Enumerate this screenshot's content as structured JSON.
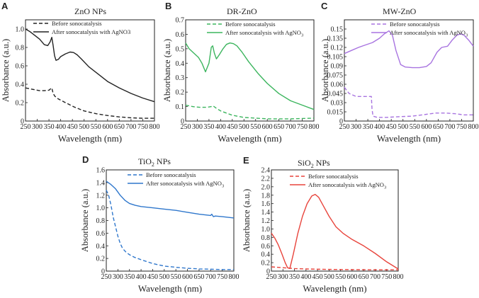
{
  "x_ticks": [
    "250",
    "300",
    "350",
    "400",
    "450",
    "500",
    "550",
    "600",
    "650",
    "700",
    "750",
    "800"
  ],
  "xlabel": "Wavelength (nm)",
  "ylabel": "Absorbance (a.u.)",
  "legend_before": "Before sonocatalysis",
  "legend_after_prefix": "After sonocatalysis with AgNO",
  "legend_after_sub": "3",
  "chart_data": [
    {
      "letter": "A",
      "type": "line",
      "title_parts": [
        {
          "t": "ZnO  NPs",
          "sub": false
        }
      ],
      "xlim": [
        250,
        800
      ],
      "ylim": [
        0,
        1.1
      ],
      "y_ticks": [
        {
          "v": 0,
          "label": "0"
        },
        {
          "v": 0.2,
          "label": "0.2"
        },
        {
          "v": 0.4,
          "label": "0.4"
        },
        {
          "v": 0.6,
          "label": "0.6"
        },
        {
          "v": 0.8,
          "label": "0.8"
        },
        {
          "v": 1.0,
          "label": "1.0"
        }
      ],
      "legend_style": "plain",
      "color": "#222222",
      "series": [
        {
          "name": "Before sonocatalysis",
          "dash": true,
          "x": [
            250,
            280,
            310,
            330,
            350,
            362,
            368,
            375,
            390,
            420,
            460,
            500,
            550,
            600,
            650,
            700,
            750,
            800
          ],
          "y": [
            0.36,
            0.345,
            0.33,
            0.33,
            0.335,
            0.36,
            0.3,
            0.27,
            0.24,
            0.2,
            0.15,
            0.11,
            0.08,
            0.06,
            0.045,
            0.035,
            0.03,
            0.03
          ]
        },
        {
          "name": "After sonocatalysis with AgNO3",
          "dash": false,
          "x": [
            250,
            270,
            290,
            310,
            330,
            345,
            355,
            362,
            368,
            374,
            380,
            390,
            400,
            420,
            440,
            455,
            470,
            490,
            520,
            560,
            600,
            650,
            700,
            750,
            800
          ],
          "y": [
            1.0,
            0.97,
            0.93,
            0.89,
            0.83,
            0.82,
            0.86,
            0.91,
            0.82,
            0.71,
            0.66,
            0.67,
            0.7,
            0.73,
            0.75,
            0.745,
            0.72,
            0.67,
            0.59,
            0.51,
            0.43,
            0.36,
            0.3,
            0.25,
            0.21
          ]
        }
      ]
    },
    {
      "letter": "B",
      "type": "line",
      "title_parts": [
        {
          "t": "DR-ZnO",
          "sub": false
        }
      ],
      "xlim": [
        250,
        800
      ],
      "ylim": [
        0,
        0.7
      ],
      "y_ticks": [
        {
          "v": 0,
          "label": "0"
        },
        {
          "v": 0.1,
          "label": "0.1"
        },
        {
          "v": 0.2,
          "label": "0.2"
        },
        {
          "v": 0.3,
          "label": "0.3"
        },
        {
          "v": 0.4,
          "label": "0.4"
        },
        {
          "v": 0.5,
          "label": "0.5"
        },
        {
          "v": 0.6,
          "label": "0.6"
        },
        {
          "v": 0.7,
          "label": "0.7"
        }
      ],
      "legend_style": "sub",
      "color": "#3cb55e",
      "series": [
        {
          "name": "Before sonocatalysis",
          "dash": true,
          "x": [
            250,
            280,
            310,
            340,
            360,
            368,
            380,
            400,
            450,
            500,
            550,
            600,
            700,
            800
          ],
          "y": [
            0.11,
            0.1,
            0.095,
            0.095,
            0.1,
            0.105,
            0.09,
            0.07,
            0.04,
            0.025,
            0.02,
            0.015,
            0.015,
            0.02
          ]
        },
        {
          "name": "After sonocatalysis with AgNO3",
          "dash": false,
          "x": [
            250,
            265,
            285,
            305,
            320,
            335,
            350,
            360,
            366,
            373,
            382,
            395,
            410,
            425,
            440,
            455,
            470,
            490,
            520,
            560,
            600,
            650,
            700,
            750,
            800
          ],
          "y": [
            0.54,
            0.5,
            0.47,
            0.44,
            0.4,
            0.34,
            0.4,
            0.51,
            0.52,
            0.47,
            0.43,
            0.46,
            0.5,
            0.53,
            0.54,
            0.535,
            0.52,
            0.48,
            0.41,
            0.33,
            0.26,
            0.19,
            0.14,
            0.11,
            0.08
          ]
        }
      ]
    },
    {
      "letter": "C",
      "type": "line",
      "title_parts": [
        {
          "t": "MW-ZnO",
          "sub": false
        }
      ],
      "xlim": [
        250,
        800
      ],
      "ylim": [
        0,
        0.165
      ],
      "y_ticks": [
        {
          "v": 0,
          "label": "0"
        },
        {
          "v": 0.015,
          "label": "0.015"
        },
        {
          "v": 0.03,
          "label": "0.03"
        },
        {
          "v": 0.045,
          "label": "0.045"
        },
        {
          "v": 0.06,
          "label": "0.06"
        },
        {
          "v": 0.075,
          "label": "0.075"
        },
        {
          "v": 0.09,
          "label": "0.09"
        },
        {
          "v": 0.105,
          "label": "0.105"
        },
        {
          "v": 0.12,
          "label": "0.12"
        },
        {
          "v": 0.135,
          "label": "0.135"
        },
        {
          "v": 0.15,
          "label": "0.15"
        }
      ],
      "legend_style": "sub",
      "color": "#a874e0",
      "series": [
        {
          "name": "Before sonocatalysis",
          "dash": true,
          "x": [
            250,
            270,
            300,
            330,
            365,
            368,
            372,
            390,
            430,
            480,
            540,
            600,
            640,
            680,
            720,
            760,
            800
          ],
          "y": [
            0.055,
            0.045,
            0.04,
            0.04,
            0.04,
            0.02,
            0.008,
            0.006,
            0.006,
            0.007,
            0.008,
            0.011,
            0.013,
            0.013,
            0.012,
            0.01,
            0.01
          ]
        },
        {
          "name": "After sonocatalysis with AgNO3",
          "dash": false,
          "x": [
            250,
            280,
            310,
            340,
            370,
            400,
            420,
            440,
            455,
            470,
            490,
            510,
            540,
            570,
            600,
            620,
            645,
            665,
            690,
            710,
            730,
            745,
            760,
            780,
            800
          ],
          "y": [
            0.11,
            0.115,
            0.12,
            0.124,
            0.128,
            0.135,
            0.142,
            0.147,
            0.14,
            0.115,
            0.092,
            0.088,
            0.087,
            0.087,
            0.089,
            0.095,
            0.112,
            0.12,
            0.122,
            0.132,
            0.14,
            0.142,
            0.14,
            0.132,
            0.122
          ]
        }
      ]
    },
    {
      "letter": "D",
      "type": "line",
      "title_parts": [
        {
          "t": "TiO",
          "sub": false
        },
        {
          "t": "2",
          "sub": true
        },
        {
          "t": "  NPs",
          "sub": false
        }
      ],
      "xlim": [
        250,
        800
      ],
      "ylim": [
        0,
        1.6
      ],
      "y_ticks": [
        {
          "v": 0,
          "label": "0"
        },
        {
          "v": 0.2,
          "label": "0.2"
        },
        {
          "v": 0.4,
          "label": "0.4"
        },
        {
          "v": 0.6,
          "label": "0.6"
        },
        {
          "v": 0.8,
          "label": "0.8"
        },
        {
          "v": 1.0,
          "label": "1.0"
        },
        {
          "v": 1.2,
          "label": "1.2"
        },
        {
          "v": 1.4,
          "label": "1.4"
        },
        {
          "v": 1.6,
          "label": "1.6"
        }
      ],
      "legend_style": "sub",
      "color": "#2f77cc",
      "series": [
        {
          "name": "Before sonocatalysis",
          "dash": true,
          "x": [
            250,
            260,
            270,
            280,
            290,
            300,
            310,
            320,
            335,
            350,
            370,
            400,
            450,
            500,
            550,
            600,
            650,
            700,
            750,
            800
          ],
          "y": [
            1.28,
            1.2,
            1.05,
            0.85,
            0.7,
            0.55,
            0.44,
            0.36,
            0.3,
            0.26,
            0.22,
            0.18,
            0.12,
            0.08,
            0.06,
            0.045,
            0.035,
            0.03,
            0.025,
            0.025
          ]
        },
        {
          "name": "After sonocatalysis with AgNO3",
          "dash": false,
          "x": [
            250,
            270,
            290,
            310,
            330,
            350,
            375,
            400,
            450,
            500,
            550,
            600,
            650,
            700,
            705,
            712,
            720,
            750,
            800
          ],
          "y": [
            1.42,
            1.37,
            1.3,
            1.2,
            1.12,
            1.07,
            1.04,
            1.02,
            1.0,
            0.98,
            0.96,
            0.93,
            0.9,
            0.88,
            0.9,
            0.86,
            0.87,
            0.86,
            0.84
          ]
        }
      ]
    },
    {
      "letter": "E",
      "type": "line",
      "title_parts": [
        {
          "t": "SiO",
          "sub": false
        },
        {
          "t": "2",
          "sub": true
        },
        {
          "t": "  NPs",
          "sub": false
        }
      ],
      "xlim": [
        250,
        800
      ],
      "ylim": [
        0,
        2.4
      ],
      "y_ticks": [
        {
          "v": 0,
          "label": "0"
        },
        {
          "v": 0.2,
          "label": "0.2"
        },
        {
          "v": 0.4,
          "label": "0.4"
        },
        {
          "v": 0.6,
          "label": "0.6"
        },
        {
          "v": 0.8,
          "label": "0.8"
        },
        {
          "v": 1.0,
          "label": "1.0"
        },
        {
          "v": 1.2,
          "label": "1.2"
        },
        {
          "v": 1.4,
          "label": "1.4"
        },
        {
          "v": 1.6,
          "label": "1.6"
        },
        {
          "v": 1.8,
          "label": "1.8"
        },
        {
          "v": 2.0,
          "label": "2.0"
        },
        {
          "v": 2.2,
          "label": "2.2"
        },
        {
          "v": 2.4,
          "label": "2.4"
        }
      ],
      "legend_style": "sub",
      "color": "#e8443c",
      "series": [
        {
          "name": "Before sonocatalysis",
          "dash": true,
          "x": [
            250,
            300,
            350,
            400,
            500,
            600,
            700,
            800
          ],
          "y": [
            0.1,
            0.08,
            0.06,
            0.05,
            0.04,
            0.035,
            0.03,
            0.03
          ]
        },
        {
          "name": "After sonocatalysis with AgNO3",
          "dash": false,
          "x": [
            250,
            265,
            280,
            295,
            310,
            320,
            330,
            345,
            365,
            385,
            405,
            425,
            440,
            455,
            475,
            500,
            530,
            560,
            600,
            650,
            700,
            750,
            800
          ],
          "y": [
            0.9,
            0.78,
            0.62,
            0.42,
            0.2,
            0.08,
            0.06,
            0.4,
            0.9,
            1.3,
            1.6,
            1.78,
            1.82,
            1.75,
            1.55,
            1.3,
            1.05,
            0.9,
            0.75,
            0.6,
            0.42,
            0.22,
            0.05
          ]
        }
      ]
    }
  ]
}
